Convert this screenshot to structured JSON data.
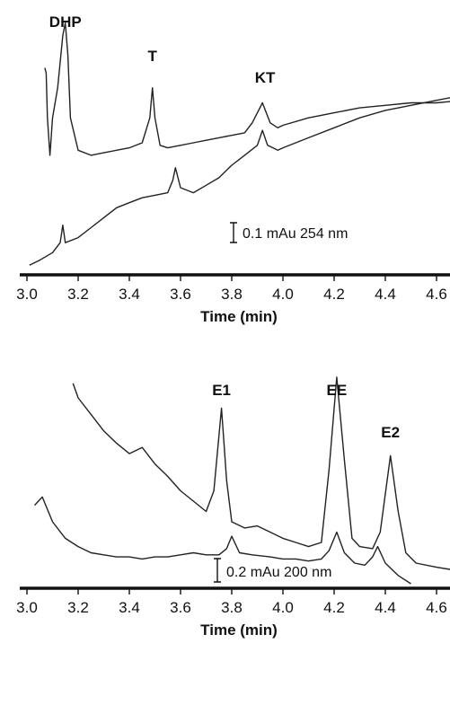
{
  "chart_data": [
    {
      "type": "line",
      "title": "",
      "xlabel": "Time (min)",
      "ylabel": "",
      "xlim": [
        3.0,
        4.7
      ],
      "ylim": [
        0,
        1
      ],
      "x_ticks": [
        "3.0",
        "3.2",
        "3.4",
        "3.6",
        "3.8",
        "4.0",
        "4.2",
        "4.4",
        "4.6"
      ],
      "grid": false,
      "legend": "none",
      "scale_bar": "0.1 mAu 254 nm",
      "peak_labels": [
        {
          "text": "DHP",
          "x": 3.15
        },
        {
          "text": "T",
          "x": 3.49
        },
        {
          "text": "KT",
          "x": 3.93
        }
      ],
      "series": [
        {
          "x": [
            3.07,
            3.075,
            3.08,
            3.09,
            3.1,
            3.12,
            3.14,
            3.15,
            3.16,
            3.17,
            3.2,
            3.25,
            3.3,
            3.35,
            3.4,
            3.45,
            3.48,
            3.49,
            3.5,
            3.52,
            3.55,
            3.6,
            3.65,
            3.7,
            3.75,
            3.8,
            3.85,
            3.88,
            3.92,
            3.95,
            3.98,
            4.0,
            4.1,
            4.2,
            4.3,
            4.4,
            4.5,
            4.6,
            4.7
          ],
          "values": [
            0.8,
            0.78,
            0.6,
            0.45,
            0.6,
            0.72,
            0.93,
            0.98,
            0.85,
            0.6,
            0.47,
            0.45,
            0.46,
            0.47,
            0.48,
            0.5,
            0.6,
            0.72,
            0.6,
            0.49,
            0.48,
            0.49,
            0.5,
            0.51,
            0.52,
            0.53,
            0.54,
            0.58,
            0.66,
            0.58,
            0.56,
            0.57,
            0.6,
            0.62,
            0.64,
            0.65,
            0.66,
            0.66,
            0.67
          ]
        },
        {
          "x": [
            3.01,
            3.05,
            3.1,
            3.13,
            3.14,
            3.15,
            3.2,
            3.25,
            3.3,
            3.35,
            3.4,
            3.45,
            3.5,
            3.55,
            3.57,
            3.58,
            3.6,
            3.65,
            3.7,
            3.75,
            3.8,
            3.85,
            3.9,
            3.92,
            3.94,
            3.98,
            4.0,
            4.1,
            4.2,
            4.3,
            4.4,
            4.5,
            4.6,
            4.7
          ],
          "values": [
            0.01,
            0.03,
            0.06,
            0.1,
            0.17,
            0.1,
            0.12,
            0.16,
            0.2,
            0.24,
            0.26,
            0.28,
            0.29,
            0.3,
            0.35,
            0.4,
            0.32,
            0.3,
            0.33,
            0.36,
            0.41,
            0.45,
            0.49,
            0.55,
            0.49,
            0.47,
            0.48,
            0.52,
            0.56,
            0.6,
            0.63,
            0.65,
            0.67,
            0.69
          ]
        }
      ]
    },
    {
      "type": "line",
      "title": "",
      "xlabel": "Time (min)",
      "ylabel": "",
      "xlim": [
        3.0,
        4.7
      ],
      "ylim": [
        0,
        1
      ],
      "x_ticks": [
        "3.0",
        "3.2",
        "3.4",
        "3.6",
        "3.8",
        "4.0",
        "4.2",
        "4.4",
        "4.6"
      ],
      "grid": false,
      "legend": "none",
      "scale_bar": "0.2 mAu 200 nm",
      "peak_labels": [
        {
          "text": "E1",
          "x": 3.76
        },
        {
          "text": "EE",
          "x": 4.21
        },
        {
          "text": "E2",
          "x": 4.42
        }
      ],
      "series": [
        {
          "x": [
            3.18,
            3.2,
            3.25,
            3.3,
            3.35,
            3.4,
            3.45,
            3.5,
            3.55,
            3.6,
            3.65,
            3.7,
            3.73,
            3.76,
            3.78,
            3.8,
            3.85,
            3.9,
            3.95,
            4.0,
            4.05,
            4.1,
            4.15,
            4.18,
            4.21,
            4.24,
            4.27,
            4.3,
            4.35,
            4.38,
            4.42,
            4.45,
            4.48,
            4.52,
            4.6,
            4.7
          ],
          "values": [
            0.97,
            0.9,
            0.82,
            0.74,
            0.68,
            0.63,
            0.66,
            0.58,
            0.52,
            0.45,
            0.4,
            0.35,
            0.45,
            0.85,
            0.5,
            0.3,
            0.27,
            0.28,
            0.25,
            0.22,
            0.2,
            0.18,
            0.2,
            0.55,
            1.0,
            0.6,
            0.22,
            0.18,
            0.17,
            0.25,
            0.62,
            0.35,
            0.15,
            0.1,
            0.08,
            0.06
          ]
        },
        {
          "x": [
            3.03,
            3.06,
            3.1,
            3.15,
            3.2,
            3.25,
            3.3,
            3.35,
            3.4,
            3.45,
            3.5,
            3.55,
            3.6,
            3.65,
            3.7,
            3.75,
            3.78,
            3.8,
            3.83,
            3.88,
            3.95,
            4.0,
            4.05,
            4.1,
            4.15,
            4.18,
            4.21,
            4.24,
            4.28,
            4.32,
            4.35,
            4.37,
            4.4,
            4.45,
            4.5
          ],
          "values": [
            0.38,
            0.42,
            0.3,
            0.22,
            0.18,
            0.15,
            0.14,
            0.13,
            0.13,
            0.12,
            0.13,
            0.13,
            0.14,
            0.15,
            0.14,
            0.14,
            0.17,
            0.23,
            0.15,
            0.14,
            0.13,
            0.12,
            0.12,
            0.11,
            0.12,
            0.16,
            0.25,
            0.15,
            0.1,
            0.09,
            0.13,
            0.18,
            0.1,
            0.04,
            0.0
          ]
        }
      ]
    }
  ]
}
